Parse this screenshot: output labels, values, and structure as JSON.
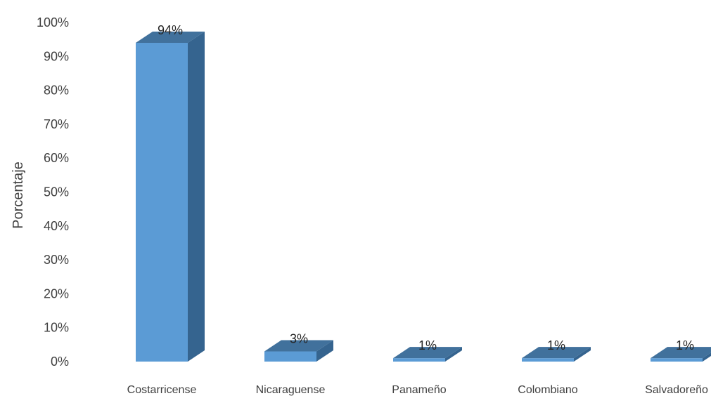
{
  "chart_data": {
    "type": "bar",
    "style": "3d-column",
    "categories": [
      "Costarricense",
      "Nicaraguense",
      "Panameño",
      "Colombiano",
      "Salvadoreño"
    ],
    "values": [
      94,
      3,
      1,
      1,
      1
    ],
    "data_labels": [
      "94%",
      "3%",
      "1%",
      "1%",
      "1%"
    ],
    "title": "",
    "xlabel": "",
    "ylabel": "Porcentaje",
    "ylim": [
      0,
      100
    ],
    "y_ticks": [
      0,
      10,
      20,
      30,
      40,
      50,
      60,
      70,
      80,
      90,
      100
    ],
    "y_tick_labels": [
      "0%",
      "10%",
      "20%",
      "30%",
      "40%",
      "50%",
      "60%",
      "70%",
      "80%",
      "90%",
      "100%"
    ],
    "grid": false,
    "legend": "none",
    "colors": {
      "bar_front": "#5B9BD5",
      "bar_top": "#41719C",
      "bar_side": "#35648F"
    }
  }
}
